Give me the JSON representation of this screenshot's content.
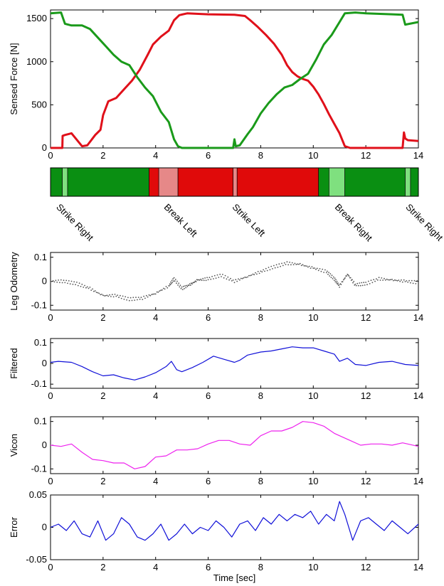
{
  "colors": {
    "force_right": "#e0101a",
    "force_left": "#1a9a1a",
    "phase_dark_green": "#0a8f12",
    "phase_light_green": "#7fe07f",
    "phase_red": "#e00a0a",
    "phase_pink": "#e68888",
    "leg_odometry": "#555555",
    "filtered": "#1010d8",
    "vicon": "#ee22ee",
    "error": "#1010d8"
  },
  "chart_data": [
    {
      "type": "line",
      "ylabel": "Sensed Force [N]",
      "xlabel": "",
      "xlim": [
        0,
        14
      ],
      "ylim": [
        0,
        1600
      ],
      "x_ticks": [
        "0",
        "2",
        "4",
        "6",
        "8",
        "10",
        "12",
        "14"
      ],
      "y_ticks": [
        "0",
        "500",
        "1000",
        "1500"
      ],
      "series": [
        {
          "color": "#e0101a",
          "x": [
            0.0,
            0.45,
            0.46,
            0.55,
            0.8,
            1.2,
            1.4,
            1.7,
            1.9,
            2.0,
            2.2,
            2.5,
            2.8,
            3.1,
            3.4,
            3.7,
            3.9,
            4.2,
            4.5,
            4.7,
            4.9,
            5.2,
            6.0,
            7.0,
            7.4,
            7.6,
            7.9,
            8.2,
            8.5,
            8.8,
            9.0,
            9.2,
            9.4,
            9.6,
            9.8,
            10.0,
            10.2,
            10.4,
            10.6,
            10.8,
            11.0,
            11.2,
            11.4,
            12.0,
            13.4,
            13.45,
            13.5,
            13.6,
            14.0
          ],
          "y": [
            0,
            0,
            140,
            150,
            170,
            20,
            30,
            150,
            210,
            380,
            540,
            580,
            680,
            780,
            910,
            1080,
            1200,
            1290,
            1360,
            1480,
            1540,
            1560,
            1550,
            1545,
            1530,
            1480,
            1400,
            1310,
            1210,
            1080,
            960,
            880,
            830,
            800,
            780,
            710,
            620,
            510,
            390,
            280,
            170,
            20,
            0,
            0,
            0,
            180,
            110,
            90,
            80
          ]
        },
        {
          "color": "#1a9a1a",
          "x": [
            0.0,
            0.4,
            0.55,
            0.8,
            1.2,
            1.5,
            1.8,
            2.1,
            2.4,
            2.7,
            3.0,
            3.3,
            3.6,
            3.9,
            4.2,
            4.5,
            4.7,
            4.85,
            5.0,
            6.0,
            6.95,
            7.0,
            7.05,
            7.2,
            7.5,
            7.7,
            8.0,
            8.3,
            8.6,
            8.9,
            9.2,
            9.5,
            9.8,
            10.1,
            10.4,
            10.7,
            11.0,
            11.2,
            11.6,
            12.0,
            13.0,
            13.4,
            13.5,
            14.0
          ],
          "y": [
            1560,
            1570,
            1440,
            1420,
            1420,
            1380,
            1280,
            1180,
            1080,
            1000,
            960,
            820,
            700,
            600,
            420,
            300,
            100,
            20,
            0,
            0,
            0,
            100,
            20,
            30,
            160,
            240,
            400,
            520,
            620,
            700,
            730,
            800,
            860,
            1020,
            1200,
            1310,
            1460,
            1560,
            1570,
            1560,
            1550,
            1545,
            1430,
            1460
          ]
        }
      ]
    },
    {
      "type": "bar",
      "title": "",
      "xlim": [
        0,
        14
      ],
      "segments": [
        {
          "start": 0.0,
          "end": 0.45,
          "color": "#0a8f12"
        },
        {
          "start": 0.45,
          "end": 0.65,
          "color": "#7fe07f"
        },
        {
          "start": 0.65,
          "end": 3.75,
          "color": "#0a8f12"
        },
        {
          "start": 3.75,
          "end": 4.12,
          "color": "#e00a0a"
        },
        {
          "start": 4.12,
          "end": 4.85,
          "color": "#e68888"
        },
        {
          "start": 4.85,
          "end": 6.95,
          "color": "#e00a0a"
        },
        {
          "start": 6.95,
          "end": 7.1,
          "color": "#e68888"
        },
        {
          "start": 7.1,
          "end": 10.2,
          "color": "#e00a0a"
        },
        {
          "start": 10.2,
          "end": 10.6,
          "color": "#0a8f12"
        },
        {
          "start": 10.6,
          "end": 11.2,
          "color": "#7fe07f"
        },
        {
          "start": 11.2,
          "end": 13.5,
          "color": "#0a8f12"
        },
        {
          "start": 13.5,
          "end": 13.7,
          "color": "#7fe07f"
        },
        {
          "start": 13.7,
          "end": 14.0,
          "color": "#0a8f12"
        }
      ],
      "annotations": [
        {
          "label": "Strike Right",
          "x": 0.2
        },
        {
          "label": "Break Left",
          "x": 4.3
        },
        {
          "label": "Strike Left",
          "x": 6.9
        },
        {
          "label": "Break Right",
          "x": 10.8
        },
        {
          "label": "Strike Right",
          "x": 13.5
        }
      ]
    },
    {
      "type": "scatter",
      "ylabel": "Leg Odometry",
      "xlim": [
        0,
        14
      ],
      "ylim": [
        -0.12,
        0.12
      ],
      "x_ticks": [
        "0",
        "2",
        "4",
        "6",
        "8",
        "10",
        "12",
        "14"
      ],
      "y_ticks": [
        "0.1",
        "0",
        "-0.1"
      ],
      "series": [
        {
          "color": "#555555",
          "x": [
            0,
            0.5,
            1.0,
            1.5,
            2.0,
            2.5,
            3.0,
            3.5,
            4.0,
            4.5,
            4.7,
            5.0,
            5.3,
            5.6,
            6.0,
            6.5,
            7.0,
            7.5,
            8.0,
            8.5,
            9.0,
            9.5,
            10.0,
            10.5,
            10.8,
            11.0,
            11.3,
            11.6,
            12.0,
            12.5,
            13.0,
            13.5,
            14.0
          ],
          "y": [
            0.0,
            0.0,
            -0.01,
            -0.03,
            -0.06,
            -0.06,
            -0.075,
            -0.07,
            -0.05,
            -0.02,
            0.01,
            -0.03,
            -0.015,
            0.005,
            0.01,
            0.025,
            0.0,
            0.02,
            0.04,
            0.06,
            0.075,
            0.07,
            0.055,
            0.04,
            0.01,
            -0.02,
            0.03,
            -0.015,
            -0.01,
            0.01,
            0.005,
            0.0,
            -0.005
          ]
        }
      ]
    },
    {
      "type": "line",
      "ylabel": "Filtered",
      "xlim": [
        0,
        14
      ],
      "ylim": [
        -0.12,
        0.12
      ],
      "x_ticks": [
        "0",
        "2",
        "4",
        "6",
        "8",
        "10",
        "12",
        "14"
      ],
      "y_ticks": [
        "0.1",
        "0",
        "-0.1"
      ],
      "series": [
        {
          "color": "#1010d8",
          "x": [
            0,
            0.3,
            0.8,
            1.2,
            1.6,
            2.0,
            2.4,
            2.8,
            3.2,
            3.6,
            4.0,
            4.4,
            4.6,
            4.8,
            5.0,
            5.4,
            5.8,
            6.2,
            6.6,
            7.0,
            7.2,
            7.5,
            8.0,
            8.4,
            8.8,
            9.2,
            9.6,
            10.0,
            10.4,
            10.8,
            11.0,
            11.3,
            11.6,
            12.0,
            12.5,
            13.0,
            13.5,
            14.0
          ],
          "y": [
            0.005,
            0.01,
            0.005,
            -0.015,
            -0.04,
            -0.06,
            -0.055,
            -0.07,
            -0.08,
            -0.065,
            -0.045,
            -0.015,
            0.01,
            -0.03,
            -0.04,
            -0.02,
            0.005,
            0.035,
            0.02,
            0.005,
            0.015,
            0.04,
            0.055,
            0.06,
            0.07,
            0.08,
            0.075,
            0.075,
            0.06,
            0.045,
            0.01,
            0.025,
            -0.005,
            -0.01,
            0.005,
            0.01,
            -0.005,
            -0.01
          ]
        }
      ]
    },
    {
      "type": "line",
      "ylabel": "Vicon",
      "xlim": [
        0,
        14
      ],
      "ylim": [
        -0.12,
        0.12
      ],
      "x_ticks": [
        "0",
        "2",
        "4",
        "6",
        "8",
        "10",
        "12",
        "14"
      ],
      "y_ticks": [
        "0.1",
        "0",
        "-0.1"
      ],
      "series": [
        {
          "color": "#ee22ee",
          "x": [
            0,
            0.4,
            0.8,
            1.2,
            1.6,
            2.0,
            2.4,
            2.8,
            3.2,
            3.6,
            4.0,
            4.4,
            4.8,
            5.2,
            5.6,
            6.0,
            6.4,
            6.8,
            7.2,
            7.6,
            8.0,
            8.4,
            8.8,
            9.2,
            9.6,
            10.0,
            10.4,
            10.8,
            11.0,
            11.4,
            11.8,
            12.2,
            12.6,
            13.0,
            13.4,
            14.0
          ],
          "y": [
            0.0,
            -0.005,
            0.005,
            -0.03,
            -0.06,
            -0.065,
            -0.075,
            -0.075,
            -0.1,
            -0.09,
            -0.05,
            -0.045,
            -0.02,
            -0.02,
            -0.015,
            0.005,
            0.02,
            0.02,
            0.005,
            0.0,
            0.04,
            0.06,
            0.06,
            0.075,
            0.1,
            0.095,
            0.08,
            0.05,
            0.04,
            0.02,
            0.0,
            0.005,
            0.005,
            0.0,
            0.01,
            -0.005
          ]
        }
      ]
    },
    {
      "type": "line",
      "ylabel": "Error",
      "xlabel": "Time [sec]",
      "xlim": [
        0,
        14
      ],
      "ylim": [
        -0.05,
        0.05
      ],
      "x_ticks": [
        "0",
        "2",
        "4",
        "6",
        "8",
        "10",
        "12",
        "14"
      ],
      "y_ticks": [
        "0.05",
        "0",
        "-0.05"
      ],
      "series": [
        {
          "color": "#1010d8",
          "x": [
            0,
            0.3,
            0.6,
            0.9,
            1.2,
            1.5,
            1.8,
            2.1,
            2.4,
            2.7,
            3.0,
            3.3,
            3.6,
            3.9,
            4.2,
            4.5,
            4.8,
            5.1,
            5.4,
            5.7,
            6.0,
            6.3,
            6.6,
            6.9,
            7.2,
            7.5,
            7.8,
            8.1,
            8.4,
            8.7,
            9.0,
            9.3,
            9.6,
            9.9,
            10.2,
            10.5,
            10.8,
            11.0,
            11.2,
            11.5,
            11.8,
            12.1,
            12.4,
            12.7,
            13.0,
            13.3,
            13.6,
            14.0
          ],
          "y": [
            0.0,
            0.005,
            -0.005,
            0.01,
            -0.01,
            -0.015,
            0.01,
            -0.02,
            -0.01,
            0.015,
            0.005,
            -0.015,
            -0.02,
            -0.01,
            0.005,
            -0.02,
            -0.01,
            0.005,
            -0.01,
            0.0,
            -0.005,
            0.01,
            0.0,
            -0.015,
            0.005,
            0.01,
            -0.005,
            0.015,
            0.005,
            0.02,
            0.01,
            0.02,
            0.015,
            0.025,
            0.005,
            0.02,
            0.01,
            0.04,
            0.02,
            -0.02,
            0.01,
            0.015,
            0.005,
            -0.005,
            0.01,
            0.0,
            -0.01,
            0.005
          ]
        }
      ]
    }
  ]
}
